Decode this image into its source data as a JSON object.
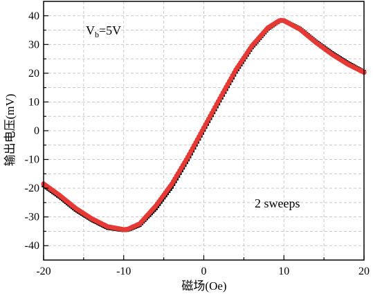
{
  "chart_data": {
    "type": "scatter",
    "xlabel": "磁场(Oe)",
    "ylabel": "输出电压(mV)",
    "xlim": [
      -20,
      20
    ],
    "ylim": [
      -45,
      45
    ],
    "x_ticks": [
      -20,
      -10,
      0,
      10,
      20
    ],
    "y_ticks": [
      -40,
      -30,
      -20,
      -10,
      0,
      10,
      20,
      30,
      40
    ],
    "x_tick_labels": [
      "-20",
      "-10",
      "0",
      "10",
      "20"
    ],
    "y_tick_labels": [
      "-40",
      "-30",
      "-20",
      "-10",
      "0",
      "10",
      "20",
      "30",
      "40"
    ],
    "grid": true,
    "annotations": {
      "bias_main": "V",
      "bias_sub": "b",
      "bias_value": "=5V",
      "sweeps": "2 sweeps"
    },
    "series": [
      {
        "color": "#000000",
        "marker": "square",
        "x": [
          -20,
          -18,
          -16,
          -14,
          -12,
          -10,
          -9.5,
          -8,
          -6,
          -4,
          -2,
          0,
          2,
          4,
          6,
          8,
          9.5,
          10,
          12,
          14,
          16,
          18,
          20
        ],
        "y": [
          -19,
          -23,
          -27.5,
          -31,
          -33.8,
          -34.6,
          -34.5,
          -32.8,
          -27,
          -19.5,
          -10,
          0.3,
          10.5,
          20.5,
          29,
          35.5,
          38.3,
          38.3,
          35.5,
          31,
          27,
          23.5,
          20.5
        ]
      },
      {
        "color": "#e53935",
        "marker": "circle",
        "x": [
          -20,
          -18,
          -16,
          -14,
          -12,
          -10,
          -9.5,
          -8,
          -6,
          -4,
          -2,
          0,
          2,
          4,
          6,
          8,
          9.5,
          10,
          12,
          14,
          16,
          18,
          20
        ],
        "y": [
          -18.5,
          -22.5,
          -27,
          -30.6,
          -33.4,
          -34.4,
          -34.3,
          -32.4,
          -26.2,
          -18.6,
          -9.2,
          1.0,
          11.2,
          21.2,
          29.5,
          35.8,
          38.4,
          38.3,
          35.3,
          30.7,
          26.6,
          23.1,
          20.3
        ]
      }
    ],
    "colors": {
      "frame": "#000000",
      "grid": "#c8c8c8",
      "series_black": "#000000",
      "series_red": "#e53935"
    }
  }
}
